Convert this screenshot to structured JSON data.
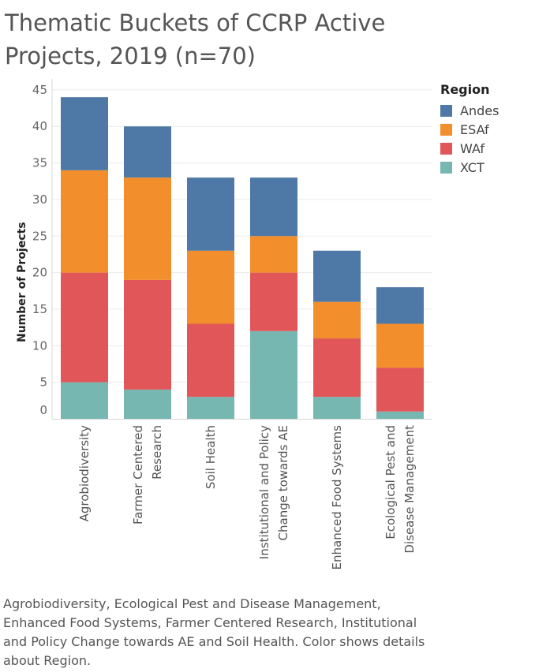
{
  "title_lines": [
    "Thematic Buckets of CCRP Active",
    "Projects, 2019 (n=70)"
  ],
  "caption": "Agrobiodiversity, Ecological Pest and Disease Management, Enhanced Food Systems, Farmer Centered Research, Institutional and Policy Change towards AE and Soil Health. Color shows details about Region.",
  "legend": {
    "title": "Region",
    "items": [
      {
        "label": "Andes",
        "color": "#4e79a7"
      },
      {
        "label": "ESAf",
        "color": "#f28e2b"
      },
      {
        "label": "WAf",
        "color": "#e15759"
      },
      {
        "label": "XCT",
        "color": "#76b7b2"
      }
    ]
  },
  "chart_data": {
    "type": "bar",
    "stacked": true,
    "title": "Thematic Buckets of CCRP Active Projects, 2019 (n=70)",
    "xlabel": "",
    "ylabel": "Number of Projects",
    "ylim": [
      0,
      45
    ],
    "yticks": [
      0,
      5,
      10,
      15,
      20,
      25,
      30,
      35,
      40,
      45
    ],
    "grid": true,
    "legend_position": "top-right",
    "categories": [
      [
        "Agrobiodiversity"
      ],
      [
        "Farmer Centered",
        "Research"
      ],
      [
        "Soil Health"
      ],
      [
        "Institutional and Policy",
        "Change towards AE"
      ],
      [
        "Enhanced Food Systems"
      ],
      [
        "Ecological Pest and",
        "Disease Management"
      ]
    ],
    "series": [
      {
        "name": "XCT",
        "color": "#76b7b2",
        "values": [
          5,
          4,
          3,
          12,
          3,
          1
        ]
      },
      {
        "name": "WAf",
        "color": "#e15759",
        "values": [
          15,
          15,
          10,
          8,
          8,
          6
        ]
      },
      {
        "name": "ESAf",
        "color": "#f28e2b",
        "values": [
          14,
          14,
          10,
          5,
          5,
          6
        ]
      },
      {
        "name": "Andes",
        "color": "#4e79a7",
        "values": [
          10,
          7,
          10,
          8,
          7,
          5
        ]
      }
    ]
  }
}
